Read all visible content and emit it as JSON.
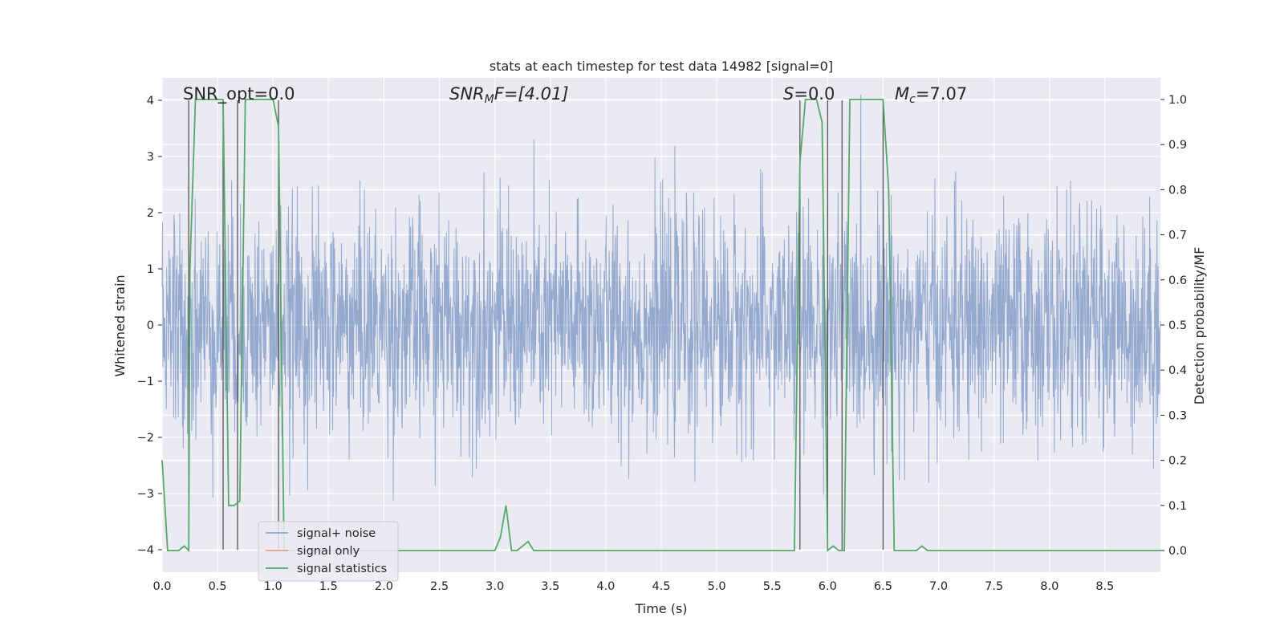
{
  "chart_data": {
    "type": "line",
    "title": "stats at each timestep for test data 14982 [signal=0]",
    "xlabel": "Time (s)",
    "ylabel": "Whitened strain",
    "ylabel_right": "Detection probability/MF",
    "xlim": [
      0,
      9.0
    ],
    "ylim": [
      -4.4,
      4.4
    ],
    "ylim_right": [
      -0.048,
      1.048
    ],
    "x_ticks": [
      "0.0",
      "0.5",
      "1.0",
      "1.5",
      "2.0",
      "2.5",
      "3.0",
      "3.5",
      "4.0",
      "4.5",
      "5.0",
      "5.5",
      "6.0",
      "6.5",
      "7.0",
      "7.5",
      "8.0",
      "8.5"
    ],
    "y_ticks": [
      "4",
      "3",
      "2",
      "1",
      "0",
      "−1",
      "−2",
      "−3",
      "−4"
    ],
    "y_ticks_right": [
      "1.0",
      "0.9",
      "0.8",
      "0.7",
      "0.6",
      "0.5",
      "0.4",
      "0.3",
      "0.2",
      "0.1",
      "0.0"
    ],
    "grid": true,
    "legend_position": "lower-left",
    "annotations": {
      "snr_opt": "SNR_opt=0.0",
      "snr_mf_base": "SNR",
      "snr_mf_sub": "M",
      "snr_mf_rest": "F=[4.01]",
      "s_sym": "S",
      "s_val": "=0.0",
      "mc_sym": "M",
      "mc_sub": "c",
      "mc_val": "=7.07"
    },
    "series": [
      {
        "name": "signal+ noise",
        "color": "#4c72b0",
        "axis": "left",
        "description_values": "whitened noise, approx. ±1.6 sigma band with spikes up to ±4"
      },
      {
        "name": "signal only",
        "color": "#dd8452",
        "axis": "left",
        "x": [],
        "y": []
      },
      {
        "name": "signal statistics",
        "color": "#55a868",
        "axis": "right",
        "x": [
          0.0,
          0.05,
          0.1,
          0.15,
          0.2,
          0.24,
          0.25,
          0.3,
          0.35,
          0.4,
          0.45,
          0.5,
          0.55,
          0.6,
          0.65,
          0.7,
          0.75,
          0.8,
          0.85,
          0.9,
          0.95,
          1.0,
          1.05,
          1.1,
          1.15,
          1.2,
          2.0,
          2.5,
          3.0,
          3.05,
          3.1,
          3.15,
          3.2,
          3.25,
          3.3,
          3.35,
          3.4,
          3.45,
          3.5,
          4.0,
          5.0,
          5.5,
          5.65,
          5.7,
          5.75,
          5.8,
          5.85,
          5.9,
          5.95,
          6.0,
          6.05,
          6.1,
          6.15,
          6.2,
          6.3,
          6.4,
          6.5,
          6.55,
          6.6,
          6.65,
          6.7,
          6.75,
          6.8,
          6.85,
          6.9,
          7.0,
          8.0,
          9.0
        ],
        "y": [
          0.2,
          0.0,
          0.0,
          0.0,
          0.01,
          0.0,
          0.62,
          1.0,
          1.0,
          1.0,
          1.0,
          1.0,
          1.0,
          0.1,
          0.1,
          0.11,
          1.0,
          1.0,
          1.0,
          1.0,
          1.0,
          1.0,
          0.94,
          0.0,
          0.0,
          0.0,
          0.0,
          0.0,
          0.0,
          0.03,
          0.1,
          0.0,
          0.0,
          0.01,
          0.02,
          0.0,
          0.0,
          0.0,
          0.0,
          0.0,
          0.0,
          0.0,
          0.0,
          0.0,
          0.86,
          1.0,
          1.0,
          1.0,
          0.95,
          0.0,
          0.01,
          0.0,
          0.0,
          1.0,
          1.0,
          1.0,
          1.0,
          0.8,
          0.0,
          0.0,
          0.0,
          0.0,
          0.0,
          0.01,
          0.0,
          0.0,
          0.0,
          0.0
        ]
      }
    ],
    "vertical_markers_x": [
      0.24,
      0.55,
      0.68,
      1.05,
      5.75,
      6.0,
      6.13,
      6.5
    ]
  }
}
